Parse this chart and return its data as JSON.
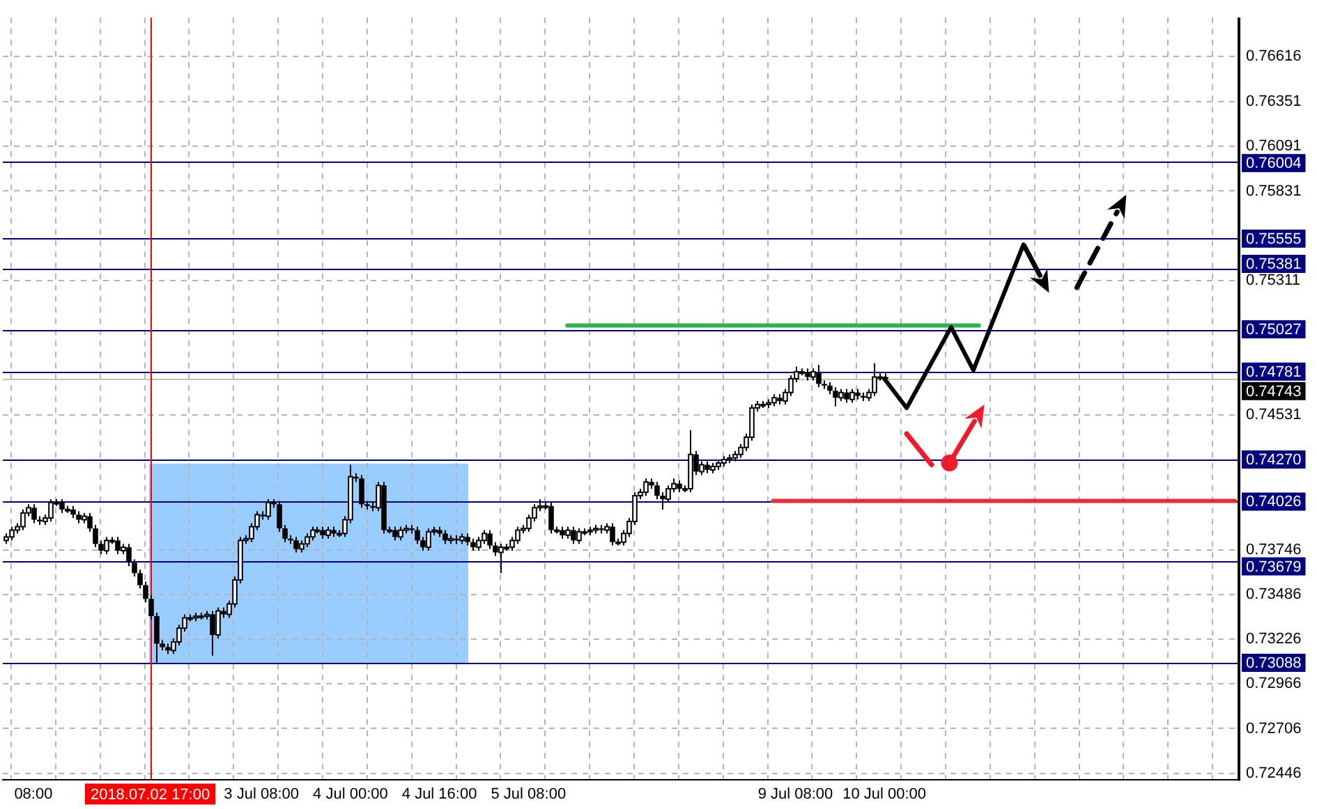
{
  "chart_data": {
    "type": "candlestick",
    "categories": [
      null,
      null,
      null,
      null,
      null,
      "08:00",
      null,
      null,
      null,
      null,
      null,
      null,
      null,
      null,
      null,
      null,
      null,
      null,
      null,
      null,
      null,
      null,
      null,
      null,
      null,
      null,
      "2018.07.02 17:00",
      null,
      null,
      null,
      null,
      null,
      null,
      null,
      null,
      null,
      null,
      null,
      null,
      null,
      null,
      null,
      null,
      null,
      null,
      null,
      "3 Jul 08:00",
      null,
      null,
      null,
      null,
      null,
      null,
      null,
      null,
      null,
      null,
      null,
      null,
      null,
      null,
      null,
      "4 Jul 00:00",
      null,
      null,
      null,
      null,
      null,
      null,
      null,
      null,
      null,
      null,
      null,
      null,
      null,
      null,
      null,
      "4 Jul 16:00",
      null,
      null,
      null,
      null,
      null,
      null,
      null,
      null,
      null,
      null,
      null,
      null,
      null,
      null,
      null,
      "5 Jul 08:00",
      null,
      null,
      null,
      null,
      null,
      null,
      null,
      null,
      null,
      null,
      null,
      null,
      null,
      null,
      null,
      null,
      null,
      null,
      null,
      null,
      null,
      null,
      null,
      null,
      null,
      null,
      null,
      null,
      null,
      null,
      null,
      null,
      null,
      null,
      null,
      null,
      null,
      null,
      null,
      null,
      null,
      null,
      null,
      null,
      null,
      null,
      null,
      "9 Jul 08:00",
      null,
      null,
      null,
      null,
      null,
      null,
      null,
      null,
      null,
      null,
      null,
      null,
      null,
      null,
      null,
      "10 Jul 00:00",
      null,
      null,
      null,
      null,
      null,
      null,
      null,
      null,
      null,
      null,
      null,
      null,
      null,
      null,
      null,
      null,
      null,
      null,
      null,
      null,
      null,
      null,
      null,
      null,
      null,
      null,
      null,
      null,
      null,
      null,
      null,
      null,
      null,
      null,
      null,
      null,
      null,
      null,
      null,
      null,
      null,
      null,
      null,
      null,
      null,
      null,
      null,
      null,
      null,
      null,
      null,
      null,
      null,
      null,
      null,
      null,
      null,
      null,
      null,
      null,
      null,
      null,
      null
    ],
    "ohlc": [
      [
        0.738,
        0.7384,
        0.7378,
        0.7382
      ],
      [
        0.7382,
        0.7388,
        0.738,
        0.7386
      ],
      [
        0.7386,
        0.739,
        0.7384,
        0.7388
      ],
      [
        0.7388,
        0.7398,
        0.7386,
        0.7396
      ],
      [
        0.7396,
        0.7401,
        0.7394,
        0.7399
      ],
      [
        0.7399,
        0.7401,
        0.739,
        0.7392
      ],
      [
        0.7392,
        0.7394,
        0.7389,
        0.7391
      ],
      [
        0.7391,
        0.7395,
        0.7389,
        0.7393
      ],
      [
        0.7393,
        0.7404,
        0.7391,
        0.7402
      ],
      [
        0.7402,
        0.7404,
        0.74,
        0.7402
      ],
      [
        0.7402,
        0.7404,
        0.7396,
        0.7398
      ],
      [
        0.7398,
        0.74,
        0.7396,
        0.7398
      ],
      [
        0.7398,
        0.74,
        0.7393,
        0.7395
      ],
      [
        0.7395,
        0.7397,
        0.739,
        0.7392
      ],
      [
        0.7392,
        0.7396,
        0.739,
        0.7394
      ],
      [
        0.7394,
        0.7396,
        0.7385,
        0.7387
      ],
      [
        0.7387,
        0.7389,
        0.7376,
        0.7378
      ],
      [
        0.7378,
        0.738,
        0.7372,
        0.7374
      ],
      [
        0.7374,
        0.7382,
        0.7372,
        0.738
      ],
      [
        0.738,
        0.7382,
        0.7378,
        0.738
      ],
      [
        0.738,
        0.7382,
        0.7372,
        0.7374
      ],
      [
        0.7374,
        0.7378,
        0.7372,
        0.7376
      ],
      [
        0.7376,
        0.7378,
        0.7365,
        0.7367
      ],
      [
        0.7367,
        0.7369,
        0.7359,
        0.7361
      ],
      [
        0.7361,
        0.7363,
        0.7352,
        0.7354
      ],
      [
        0.7354,
        0.7356,
        0.7344,
        0.7346
      ],
      [
        0.7346,
        0.7348,
        0.7334,
        0.7336
      ],
      [
        0.7336,
        0.7338,
        0.7309,
        0.732
      ],
      [
        0.732,
        0.7322,
        0.7316,
        0.7318
      ],
      [
        0.7318,
        0.732,
        0.7314,
        0.7316
      ],
      [
        0.7316,
        0.7323,
        0.7314,
        0.7321
      ],
      [
        0.7321,
        0.7331,
        0.7319,
        0.7329
      ],
      [
        0.7329,
        0.7337,
        0.7327,
        0.7335
      ],
      [
        0.7335,
        0.7337,
        0.7333,
        0.7335
      ],
      [
        0.7335,
        0.7338,
        0.7333,
        0.7336
      ],
      [
        0.7336,
        0.7338,
        0.7334,
        0.7336
      ],
      [
        0.7336,
        0.7339,
        0.7334,
        0.7337
      ],
      [
        0.7337,
        0.7339,
        0.7313,
        0.7325
      ],
      [
        0.7325,
        0.7341,
        0.7323,
        0.7339
      ],
      [
        0.7339,
        0.7341,
        0.7335,
        0.7337
      ],
      [
        0.7337,
        0.7345,
        0.7335,
        0.7343
      ],
      [
        0.7343,
        0.7359,
        0.7341,
        0.7357
      ],
      [
        0.7357,
        0.7382,
        0.7355,
        0.738
      ],
      [
        0.738,
        0.7383,
        0.7378,
        0.7381
      ],
      [
        0.7381,
        0.739,
        0.7379,
        0.7388
      ],
      [
        0.7388,
        0.7397,
        0.7386,
        0.7395
      ],
      [
        0.7395,
        0.7397,
        0.7392,
        0.7394
      ],
      [
        0.7394,
        0.7404,
        0.7392,
        0.7402
      ],
      [
        0.7402,
        0.7404,
        0.7399,
        0.7401
      ],
      [
        0.7401,
        0.7403,
        0.7385,
        0.7387
      ],
      [
        0.7387,
        0.7389,
        0.7379,
        0.7381
      ],
      [
        0.7381,
        0.7383,
        0.7378,
        0.738
      ],
      [
        0.738,
        0.7382,
        0.7373,
        0.7375
      ],
      [
        0.7375,
        0.738,
        0.7373,
        0.7378
      ],
      [
        0.7378,
        0.7384,
        0.7376,
        0.7382
      ],
      [
        0.7382,
        0.7388,
        0.738,
        0.7386
      ],
      [
        0.7386,
        0.7388,
        0.7384,
        0.7386
      ],
      [
        0.7386,
        0.7388,
        0.7381,
        0.7383
      ],
      [
        0.7383,
        0.7388,
        0.7381,
        0.7386
      ],
      [
        0.7386,
        0.7388,
        0.7382,
        0.7384
      ],
      [
        0.7384,
        0.7386,
        0.7382,
        0.7384
      ],
      [
        0.7384,
        0.7394,
        0.7382,
        0.7392
      ],
      [
        0.7392,
        0.7424,
        0.739,
        0.7417
      ],
      [
        0.7417,
        0.7419,
        0.7414,
        0.7416
      ],
      [
        0.7416,
        0.7418,
        0.7399,
        0.7401
      ],
      [
        0.7401,
        0.7403,
        0.7398,
        0.74
      ],
      [
        0.74,
        0.7402,
        0.7397,
        0.7399
      ],
      [
        0.7399,
        0.7414,
        0.7397,
        0.7412
      ],
      [
        0.7412,
        0.7414,
        0.7384,
        0.7386
      ],
      [
        0.7386,
        0.7388,
        0.7384,
        0.7386
      ],
      [
        0.7386,
        0.7388,
        0.738,
        0.7382
      ],
      [
        0.7382,
        0.7388,
        0.738,
        0.7386
      ],
      [
        0.7386,
        0.7389,
        0.7384,
        0.7387
      ],
      [
        0.7387,
        0.7389,
        0.7384,
        0.7386
      ],
      [
        0.7386,
        0.7388,
        0.7378,
        0.738
      ],
      [
        0.738,
        0.7382,
        0.7374,
        0.7376
      ],
      [
        0.7376,
        0.7387,
        0.7374,
        0.7385
      ],
      [
        0.7385,
        0.7388,
        0.7383,
        0.7386
      ],
      [
        0.7386,
        0.7388,
        0.7382,
        0.7384
      ],
      [
        0.7384,
        0.7386,
        0.7378,
        0.738
      ],
      [
        0.738,
        0.7383,
        0.7378,
        0.7381
      ],
      [
        0.7381,
        0.7383,
        0.7378,
        0.738
      ],
      [
        0.738,
        0.7384,
        0.7378,
        0.7382
      ],
      [
        0.7382,
        0.7384,
        0.7377,
        0.7379
      ],
      [
        0.7379,
        0.7381,
        0.7374,
        0.7376
      ],
      [
        0.7376,
        0.7382,
        0.7374,
        0.738
      ],
      [
        0.738,
        0.7386,
        0.7378,
        0.7384
      ],
      [
        0.7384,
        0.7386,
        0.7375,
        0.7377
      ],
      [
        0.7377,
        0.7379,
        0.7371,
        0.7373
      ],
      [
        0.7373,
        0.7378,
        0.7361,
        0.7376
      ],
      [
        0.7376,
        0.7378,
        0.7374,
        0.7376
      ],
      [
        0.7376,
        0.7382,
        0.7374,
        0.738
      ],
      [
        0.738,
        0.7388,
        0.7378,
        0.7386
      ],
      [
        0.7386,
        0.7389,
        0.7384,
        0.7387
      ],
      [
        0.7387,
        0.7395,
        0.7385,
        0.7393
      ],
      [
        0.7393,
        0.7401,
        0.7391,
        0.7399
      ],
      [
        0.7399,
        0.7404,
        0.7397,
        0.74
      ],
      [
        0.74,
        0.7402,
        0.7398,
        0.74
      ],
      [
        0.74,
        0.7402,
        0.7384,
        0.7386
      ],
      [
        0.7386,
        0.7388,
        0.7384,
        0.7386
      ],
      [
        0.7386,
        0.7388,
        0.7381,
        0.7383
      ],
      [
        0.7383,
        0.7388,
        0.7381,
        0.7386
      ],
      [
        0.7386,
        0.7388,
        0.7378,
        0.738
      ],
      [
        0.738,
        0.7387,
        0.7378,
        0.7385
      ],
      [
        0.7385,
        0.7387,
        0.7383,
        0.7385
      ],
      [
        0.7385,
        0.7388,
        0.7383,
        0.7386
      ],
      [
        0.7386,
        0.7389,
        0.7384,
        0.7387
      ],
      [
        0.7387,
        0.7389,
        0.7384,
        0.7386
      ],
      [
        0.7386,
        0.739,
        0.7384,
        0.7388
      ],
      [
        0.7388,
        0.739,
        0.7377,
        0.7379
      ],
      [
        0.7379,
        0.7381,
        0.7377,
        0.7379
      ],
      [
        0.7379,
        0.7386,
        0.7377,
        0.7384
      ],
      [
        0.7384,
        0.7393,
        0.7382,
        0.7391
      ],
      [
        0.7391,
        0.7408,
        0.7389,
        0.7406
      ],
      [
        0.7406,
        0.741,
        0.7404,
        0.7408
      ],
      [
        0.7408,
        0.7416,
        0.7406,
        0.7414
      ],
      [
        0.7414,
        0.7416,
        0.741,
        0.7412
      ],
      [
        0.7412,
        0.7414,
        0.7404,
        0.7406
      ],
      [
        0.7406,
        0.7408,
        0.7398,
        0.7404
      ],
      [
        0.7404,
        0.7412,
        0.7402,
        0.741
      ],
      [
        0.741,
        0.7416,
        0.7408,
        0.7413
      ],
      [
        0.7413,
        0.7415,
        0.7408,
        0.741
      ],
      [
        0.741,
        0.7412,
        0.7408,
        0.741
      ],
      [
        0.741,
        0.7444,
        0.7408,
        0.743
      ],
      [
        0.743,
        0.7432,
        0.7418,
        0.742
      ],
      [
        0.742,
        0.7426,
        0.7418,
        0.7424
      ],
      [
        0.7424,
        0.7426,
        0.7419,
        0.7421
      ],
      [
        0.7421,
        0.7425,
        0.7419,
        0.7423
      ],
      [
        0.7423,
        0.7427,
        0.7421,
        0.7425
      ],
      [
        0.7425,
        0.7429,
        0.7423,
        0.7427
      ],
      [
        0.7427,
        0.743,
        0.7425,
        0.7428
      ],
      [
        0.7428,
        0.7432,
        0.7426,
        0.743
      ],
      [
        0.743,
        0.7436,
        0.7428,
        0.7434
      ],
      [
        0.7434,
        0.7442,
        0.7432,
        0.744
      ],
      [
        0.744,
        0.7459,
        0.7438,
        0.7457
      ],
      [
        0.7457,
        0.7461,
        0.7455,
        0.7459
      ],
      [
        0.7459,
        0.7461,
        0.7457,
        0.7459
      ],
      [
        0.7459,
        0.7462,
        0.7457,
        0.746
      ],
      [
        0.746,
        0.7465,
        0.7458,
        0.7463
      ],
      [
        0.7463,
        0.7465,
        0.7459,
        0.7461
      ],
      [
        0.7461,
        0.7468,
        0.7459,
        0.7466
      ],
      [
        0.7466,
        0.7476,
        0.7464,
        0.7474
      ],
      [
        0.7474,
        0.7481,
        0.7472,
        0.7478
      ],
      [
        0.7478,
        0.748,
        0.7476,
        0.7478
      ],
      [
        0.7478,
        0.748,
        0.7473,
        0.7475
      ],
      [
        0.7475,
        0.748,
        0.7473,
        0.7478
      ],
      [
        0.7478,
        0.7482,
        0.7469,
        0.7471
      ],
      [
        0.7471,
        0.7473,
        0.7468,
        0.747
      ],
      [
        0.747,
        0.7472,
        0.7465,
        0.7467
      ],
      [
        0.7467,
        0.7469,
        0.7458,
        0.7463
      ],
      [
        0.7463,
        0.7468,
        0.7461,
        0.7466
      ],
      [
        0.7466,
        0.7468,
        0.746,
        0.7462
      ],
      [
        0.7462,
        0.7468,
        0.746,
        0.7466
      ],
      [
        0.7466,
        0.7468,
        0.7462,
        0.7464
      ],
      [
        0.7464,
        0.7466,
        0.7461,
        0.7463
      ],
      [
        0.7463,
        0.7468,
        0.7461,
        0.7466
      ],
      [
        0.7466,
        0.7483,
        0.7464,
        0.7475
      ],
      [
        0.7475,
        0.7477,
        0.7473,
        0.7475
      ],
      [
        0.7475,
        0.7477,
        0.7472,
        0.7474
      ],
      null,
      null,
      null,
      null,
      null,
      null,
      null,
      null,
      null,
      null,
      null,
      null,
      null,
      null,
      null,
      null,
      null,
      null,
      null,
      null,
      null,
      null,
      null,
      null,
      null,
      null,
      null,
      null,
      null,
      null,
      null,
      null,
      null,
      null,
      null,
      null,
      null,
      null,
      null,
      null,
      null,
      null,
      null,
      null,
      null,
      null,
      null,
      null,
      null,
      null,
      null,
      null,
      null,
      null,
      null,
      null,
      null,
      null,
      null,
      null,
      null,
      null,
      null
    ],
    "series": [
      {
        "type": "line",
        "color": "#000000",
        "values": [
          null,
          null,
          null,
          null,
          null,
          null,
          null,
          null,
          null,
          null,
          null,
          null,
          null,
          null,
          null,
          null,
          null,
          null,
          null,
          null,
          null,
          null,
          null,
          null,
          null,
          null,
          null,
          null,
          null,
          null,
          null,
          null,
          null,
          null,
          null,
          null,
          null,
          null,
          null,
          null,
          null,
          null,
          null,
          null,
          null,
          null,
          null,
          null,
          null,
          null,
          null,
          null,
          null,
          null,
          null,
          null,
          null,
          null,
          null,
          null,
          null,
          null,
          null,
          null,
          null,
          null,
          null,
          null,
          null,
          null,
          null,
          null,
          null,
          null,
          null,
          null,
          null,
          null,
          null,
          null,
          null,
          null,
          null,
          null,
          null,
          null,
          null,
          null,
          null,
          null,
          null,
          null,
          null,
          null,
          null,
          null,
          null,
          null,
          null,
          null,
          null,
          null,
          null,
          null,
          null,
          null,
          null,
          null,
          null,
          null,
          null,
          null,
          null,
          null,
          null,
          null,
          null,
          null,
          null,
          null,
          null,
          null,
          null,
          null,
          null,
          null,
          null,
          null,
          null,
          null,
          null,
          null,
          null,
          null,
          null,
          null,
          null,
          null,
          null,
          null,
          null,
          null,
          null,
          null,
          null,
          null,
          null,
          null,
          null,
          null,
          null,
          null,
          null,
          null,
          null,
          null,
          null,
          null,
          0.7474,
          null,
          null,
          null,
          0.7457,
          null,
          null,
          null,
          null,
          null,
          null,
          null,
          0.7504,
          null,
          null,
          null,
          0.7479,
          null,
          null,
          null,
          null,
          null,
          null,
          null,
          null,
          0.7552,
          null,
          null,
          null,
          null,
          null,
          null,
          null,
          null,
          null,
          null,
          null,
          null,
          null,
          null,
          null,
          null,
          null,
          null,
          null,
          null,
          null,
          null,
          null,
          null,
          null,
          null,
          null,
          null,
          null,
          null,
          null,
          null,
          null,
          null,
          null,
          null,
          null,
          null
        ]
      },
      {
        "type": "line",
        "color": "#2db34a",
        "values": [
          null,
          null,
          null,
          null,
          null,
          null,
          null,
          null,
          null,
          null,
          null,
          null,
          null,
          null,
          null,
          null,
          null,
          null,
          null,
          null,
          null,
          null,
          null,
          null,
          null,
          null,
          null,
          null,
          null,
          null,
          null,
          null,
          null,
          null,
          null,
          null,
          null,
          null,
          null,
          null,
          null,
          null,
          null,
          null,
          null,
          null,
          null,
          null,
          null,
          null,
          null,
          null,
          null,
          null,
          null,
          null,
          null,
          null,
          null,
          null,
          null,
          null,
          null,
          null,
          null,
          null,
          null,
          null,
          null,
          null,
          null,
          null,
          null,
          null,
          null,
          null,
          null,
          null,
          null,
          null,
          null,
          null,
          null,
          null,
          null,
          null,
          null,
          null,
          null,
          null,
          null,
          null,
          null,
          null,
          null,
          null,
          null,
          null,
          null,
          null,
          null,
          0.7505,
          null,
          null,
          null,
          null,
          null,
          null,
          null,
          null,
          null,
          null,
          null,
          null,
          null,
          null,
          null,
          null,
          null,
          null,
          null,
          null,
          null,
          null,
          null,
          null,
          null,
          null,
          null,
          null,
          null,
          null,
          null,
          null,
          null,
          null,
          null,
          null,
          null,
          null,
          null,
          null,
          null,
          null,
          null,
          null,
          null,
          null,
          null,
          null,
          null,
          null,
          null,
          null,
          null,
          null,
          null,
          null,
          null,
          null,
          null,
          null,
          null,
          null,
          null,
          null,
          null,
          null,
          null,
          null,
          null,
          null,
          null,
          null,
          null,
          0.7505,
          null,
          null,
          null,
          null,
          null,
          null,
          null,
          null,
          null,
          null,
          null,
          null,
          null,
          null,
          null,
          null,
          null,
          null,
          null,
          null,
          null,
          null,
          null,
          null,
          null,
          null,
          null,
          null,
          null,
          null,
          null,
          null,
          null,
          null,
          null,
          null,
          null,
          null,
          null,
          null,
          null,
          null,
          null,
          null,
          null,
          null
        ]
      },
      {
        "type": "line",
        "color": "#ee2a3a",
        "values": [
          null,
          null,
          null,
          null,
          null,
          null,
          null,
          null,
          null,
          null,
          null,
          null,
          null,
          null,
          null,
          null,
          null,
          null,
          null,
          null,
          null,
          null,
          null,
          null,
          null,
          null,
          null,
          null,
          null,
          null,
          null,
          null,
          null,
          null,
          null,
          null,
          null,
          null,
          null,
          null,
          null,
          null,
          null,
          null,
          null,
          null,
          null,
          null,
          null,
          null,
          null,
          null,
          null,
          null,
          null,
          null,
          null,
          null,
          null,
          null,
          null,
          null,
          null,
          null,
          null,
          null,
          null,
          null,
          null,
          null,
          null,
          null,
          null,
          null,
          null,
          null,
          null,
          null,
          null,
          null,
          null,
          null,
          null,
          null,
          null,
          null,
          null,
          null,
          null,
          null,
          null,
          null,
          null,
          null,
          null,
          null,
          null,
          null,
          null,
          null,
          null,
          null,
          null,
          null,
          null,
          null,
          null,
          null,
          null,
          null,
          null,
          null,
          null,
          null,
          null,
          null,
          null,
          null,
          null,
          null,
          null,
          null,
          null,
          null,
          null,
          null,
          null,
          null,
          null,
          null,
          null,
          null,
          null,
          null,
          null,
          null,
          null,
          null,
          0.7403,
          null,
          null,
          null,
          null,
          null,
          null,
          null,
          null,
          null,
          null,
          null,
          null,
          null,
          null,
          null,
          null,
          null,
          null,
          null,
          null,
          null,
          null,
          null,
          null,
          null,
          null,
          null,
          null,
          null,
          null,
          null,
          null,
          null,
          null,
          null,
          null,
          null,
          null,
          null,
          null,
          null,
          null,
          null,
          null,
          null,
          null,
          null,
          null,
          null,
          null,
          null,
          null,
          null,
          null,
          null,
          null,
          null,
          null,
          null,
          null,
          null,
          null,
          null,
          null,
          null,
          null,
          null,
          null,
          null,
          null,
          null,
          null,
          null,
          null,
          null,
          null,
          null,
          null,
          null,
          null,
          null,
          null,
          0.7403
        ]
      }
    ],
    "ylim": [
      0.7241,
      0.7684
    ],
    "yticks": [
      0.72446,
      0.72706,
      0.72966,
      0.73226,
      0.73486,
      0.73746,
      0.74531,
      0.75311,
      0.75831,
      0.76091,
      0.76351,
      0.76616
    ],
    "grid": true,
    "ref_lines": [
      {
        "axis": "y",
        "value": 0.76004,
        "label": "0.76004",
        "color": "#000080"
      },
      {
        "axis": "y",
        "value": 0.75555,
        "label": "0.75555",
        "color": "#000080"
      },
      {
        "axis": "y",
        "value": 0.75381,
        "label": "0.75381",
        "color": "#000080"
      },
      {
        "axis": "y",
        "value": 0.75027,
        "label": "0.75027",
        "color": "#000080"
      },
      {
        "axis": "y",
        "value": 0.74781,
        "label": "0.74781",
        "color": "#000080"
      },
      {
        "axis": "y",
        "value": 0.74743,
        "label": "0.74743",
        "color": "#c0c0c0"
      },
      {
        "axis": "y",
        "value": 0.7427,
        "label": "0.74270",
        "color": "#000080"
      },
      {
        "axis": "y",
        "value": 0.74026,
        "label": "0.74026",
        "color": "#000080"
      },
      {
        "axis": "y",
        "value": 0.73679,
        "label": "0.73679",
        "color": "#000080"
      },
      {
        "axis": "y",
        "value": 0.73088,
        "label": "0.73088",
        "color": "#000080"
      },
      {
        "axis": "x",
        "value": "2018.07.02 17:00",
        "color": "#ff0000"
      }
    ]
  }
}
